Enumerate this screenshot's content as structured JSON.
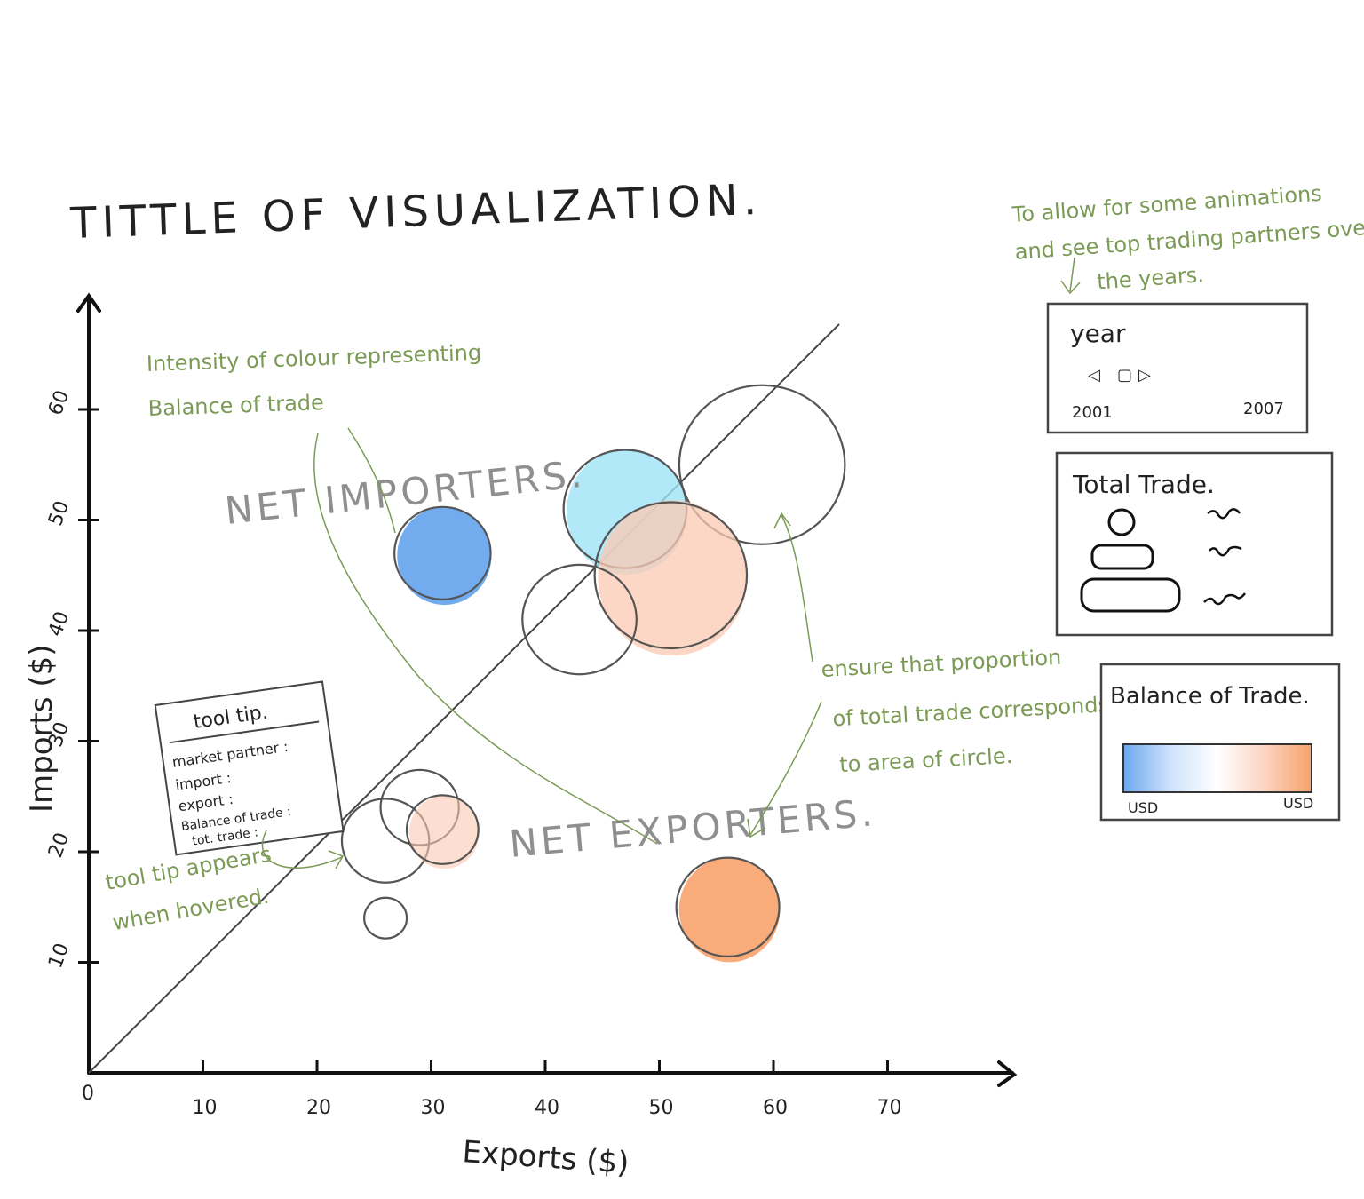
{
  "title": "TITTLE OF VISUALIZATION.",
  "axes": {
    "xlabel": "Exports ($)",
    "ylabel": "Imports ($)",
    "x_ticks": [
      "0",
      "10",
      "20",
      "30",
      "40",
      "50",
      "60",
      "70"
    ],
    "y_ticks": [
      "10",
      "20",
      "30",
      "40",
      "50",
      "60"
    ]
  },
  "regions": {
    "net_importers": "NET IMPORTERS.",
    "net_exporters": "NET EXPORTERS."
  },
  "annotations": {
    "color_intensity": [
      "Intensity of colour representing",
      "Balance of trade"
    ],
    "tooltip_hover": [
      "tool tip appears",
      "when hovered."
    ],
    "area_note": [
      "ensure that proportion",
      "of total trade corresponds",
      "to area of circle."
    ],
    "animation_note": [
      "To allow for some animations",
      "and see top trading partners over",
      "the years."
    ]
  },
  "tooltip": {
    "title": "tool tip.",
    "lines": [
      "market partner :",
      "import :",
      "export :",
      "Balance of trade :",
      "tot. trade :"
    ]
  },
  "year_panel": {
    "label": "year",
    "start": "2001",
    "end": "2007"
  },
  "total_trade_panel": {
    "title": "Total Trade."
  },
  "balance_panel": {
    "title": "Balance of Trade.",
    "left_label": "USD",
    "right_label": "USD"
  },
  "colors": {
    "importer_blue": "#6aa8ee",
    "light_blue": "#9fe3f6",
    "light_orange": "#fbc9b3",
    "strong_orange": "#f8a26a",
    "note_green": "#7a9a55"
  },
  "chart_data": {
    "type": "scatter",
    "title": "TITTLE OF VISUALIZATION.",
    "xlabel": "Exports ($)",
    "ylabel": "Imports ($)",
    "xlim": [
      0,
      80
    ],
    "ylim": [
      0,
      70
    ],
    "reference_line": "y = x",
    "points": [
      {
        "x": 31,
        "y": 47,
        "r": 4.3,
        "fill": "#6aa8ee",
        "opacity": 0.95,
        "outline": true
      },
      {
        "x": 47,
        "y": 51,
        "r": 5.5,
        "fill": "#9fe3f6",
        "opacity": 0.8,
        "outline": true
      },
      {
        "x": 59,
        "y": 55,
        "r": 7.4,
        "fill": "none",
        "opacity": 1,
        "outline": true
      },
      {
        "x": 51,
        "y": 45,
        "r": 6.8,
        "fill": "#fbc9b3",
        "opacity": 0.75,
        "outline": true
      },
      {
        "x": 43,
        "y": 41,
        "r": 5.1,
        "fill": "none",
        "opacity": 1,
        "outline": true
      },
      {
        "x": 26,
        "y": 21,
        "r": 3.9,
        "fill": "none",
        "opacity": 1,
        "outline": true
      },
      {
        "x": 29,
        "y": 24,
        "r": 3.5,
        "fill": "none",
        "opacity": 1,
        "outline": true
      },
      {
        "x": 31,
        "y": 22,
        "r": 3.2,
        "fill": "#fbc9b3",
        "opacity": 0.6,
        "outline": true
      },
      {
        "x": 26,
        "y": 14,
        "r": 1.9,
        "fill": "none",
        "opacity": 1,
        "outline": true
      },
      {
        "x": 56,
        "y": 15,
        "r": 4.6,
        "fill": "#f8a26a",
        "opacity": 0.9,
        "outline": true
      }
    ]
  }
}
